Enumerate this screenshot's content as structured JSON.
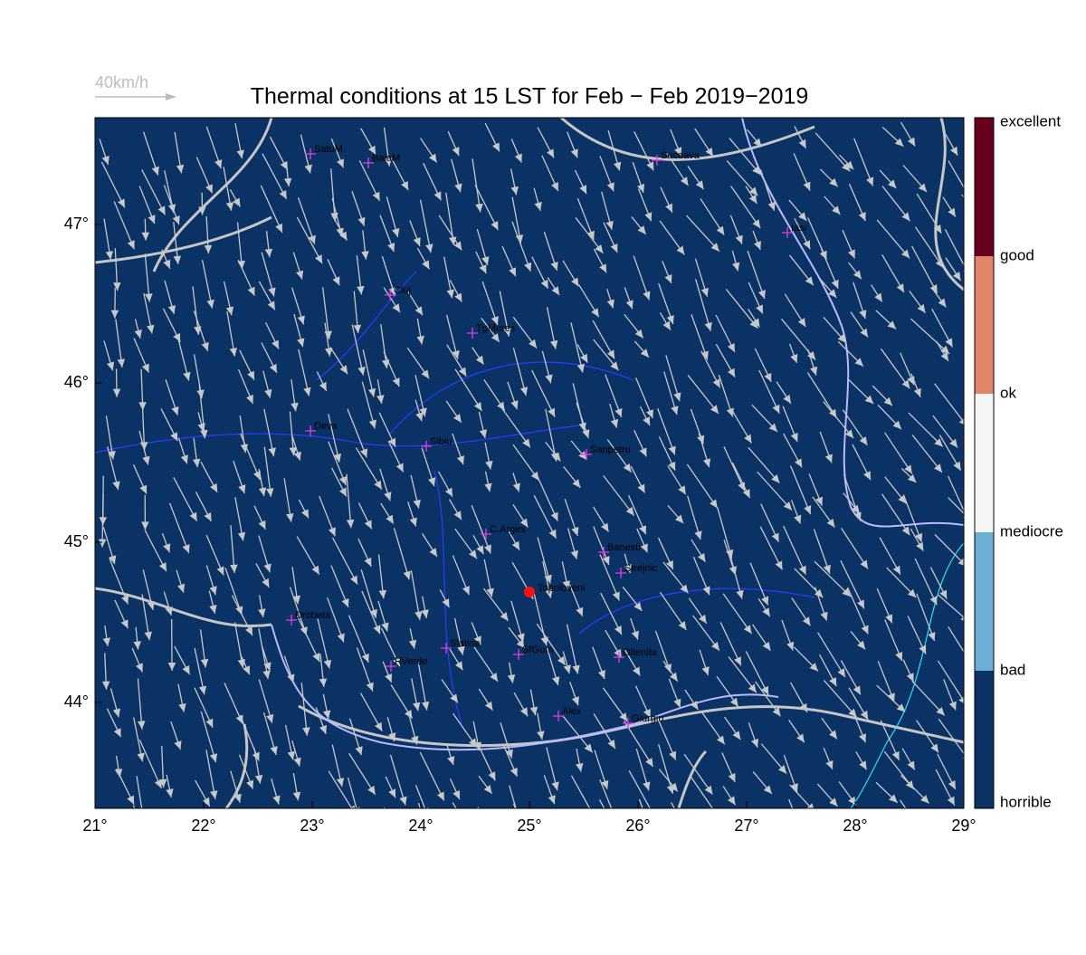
{
  "map": {
    "title": "Thermal conditions at 15 LST for Feb − Feb  2019−2019",
    "speed_legend": "40km/h",
    "lon_labels": [
      "21°",
      "22°",
      "23°",
      "24°",
      "25°",
      "26°",
      "27°",
      "28°",
      "29°"
    ],
    "lat_labels": [
      "47°",
      "46°",
      "45°",
      "44°"
    ],
    "colorbar_labels": [
      "excellent",
      "good",
      "ok",
      "mediocre",
      "bad",
      "horrible"
    ],
    "cities": [
      "SatuM",
      "BaiaM",
      "Suceava",
      "Iasi",
      "Cluj",
      "TgMures",
      "Deva",
      "Sibiu",
      "Sanpetru",
      "C.Arges",
      "Banesti",
      "Strejnic",
      "Drobeta",
      "Slatina",
      "SfGum",
      "Oltenita",
      "RVerde",
      "Alex",
      "Giurgiu"
    ],
    "location": "Topoloveni"
  }
}
